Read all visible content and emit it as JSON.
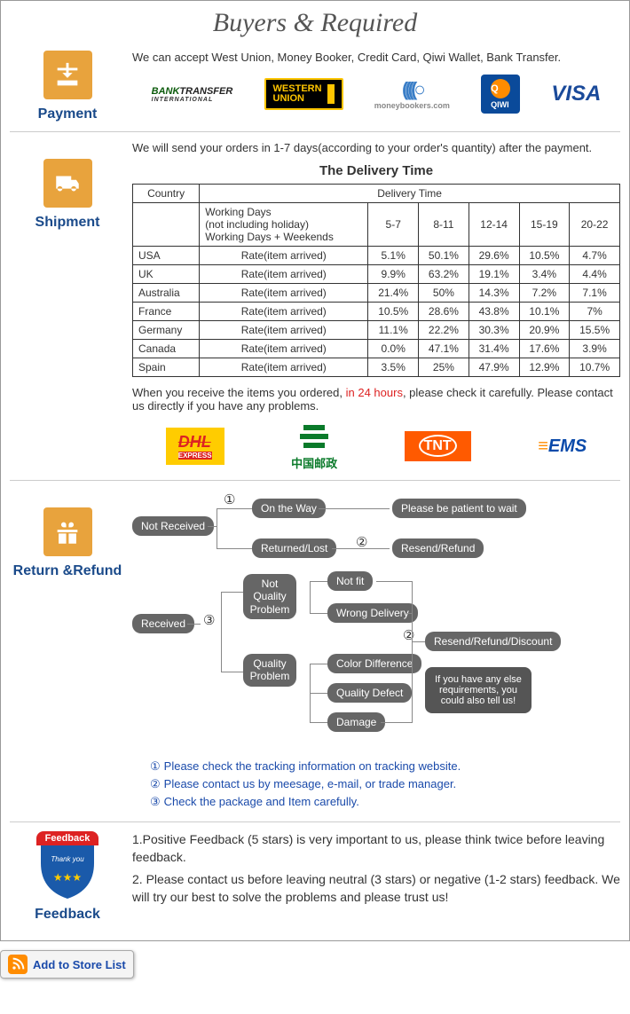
{
  "banner_title": "Buyers & Required",
  "colors": {
    "accent_orange": "#e8a33d",
    "link_blue": "#1a4a8a",
    "highlight_red": "#d22"
  },
  "payment": {
    "icon_label": "Payment",
    "intro": "We can accept West Union, Money Booker, Credit Card, Qiwi Wallet, Bank Transfer.",
    "logos": [
      {
        "name": "bank-transfer",
        "line1": "BANK",
        "line2": "TRANSFER",
        "sub": "INTERNATIONAL"
      },
      {
        "name": "western-union",
        "line1": "WESTERN",
        "line2": "UNION"
      },
      {
        "name": "moneybookers",
        "label": "moneybookers.com"
      },
      {
        "name": "qiwi",
        "letter": "Q",
        "label": "QIWI"
      },
      {
        "name": "visa",
        "label": "VISA"
      }
    ]
  },
  "shipment": {
    "icon_label": "Shipment",
    "intro": "We will send your orders in 1-7 days(according to your order's quantity) after the payment.",
    "table_title": "The Delivery Time",
    "header_country": "Country",
    "header_delivery": "Delivery Time",
    "sub_header_lines": [
      "Working Days",
      "(not including holiday)",
      "Working Days + Weekends"
    ],
    "ranges": [
      "5-7",
      "8-11",
      "12-14",
      "15-19",
      "20-22"
    ],
    "rate_label": "Rate(item arrived)",
    "rows": [
      {
        "country": "USA",
        "rates": [
          "5.1%",
          "50.1%",
          "29.6%",
          "10.5%",
          "4.7%"
        ]
      },
      {
        "country": "UK",
        "rates": [
          "9.9%",
          "63.2%",
          "19.1%",
          "3.4%",
          "4.4%"
        ]
      },
      {
        "country": "Australia",
        "rates": [
          "21.4%",
          "50%",
          "14.3%",
          "7.2%",
          "7.1%"
        ]
      },
      {
        "country": "France",
        "rates": [
          "10.5%",
          "28.6%",
          "43.8%",
          "10.1%",
          "7%"
        ]
      },
      {
        "country": "Germany",
        "rates": [
          "11.1%",
          "22.2%",
          "30.3%",
          "20.9%",
          "15.5%"
        ]
      },
      {
        "country": "Canada",
        "rates": [
          "0.0%",
          "47.1%",
          "31.4%",
          "17.6%",
          "3.9%"
        ]
      },
      {
        "country": "Spain",
        "rates": [
          "3.5%",
          "25%",
          "47.9%",
          "12.9%",
          "10.7%"
        ]
      }
    ],
    "note_pre": "When you receive the items you ordered, ",
    "note_red": "in 24 hours",
    "note_post": ", please check it carefully. Please contact us directly if you have any problems.",
    "carriers": [
      {
        "name": "dhl",
        "label": "DHL",
        "sub": "EXPRESS"
      },
      {
        "name": "china-post",
        "label": "中国邮政"
      },
      {
        "name": "tnt",
        "label": "TNT"
      },
      {
        "name": "ems",
        "label": "EMS"
      }
    ]
  },
  "return_refund": {
    "icon_label": "Return &Refund",
    "flow": {
      "not_received": "Not Received",
      "on_the_way": "On the Way",
      "returned_lost": "Returned/Lost",
      "patient": "Please be patient to wait",
      "resend_refund": "Resend/Refund",
      "received": "Received",
      "not_quality": "Not Quality Problem",
      "not_fit": "Not fit",
      "wrong_delivery": "Wrong Delivery",
      "quality_problem": "Quality Problem",
      "color_diff": "Color Difference",
      "quality_defect": "Quality Defect",
      "damage": "Damage",
      "resend_refund_discount": "Resend/Refund/Discount",
      "callout": "If you have any else requirements, you could also tell us!",
      "num1": "①",
      "num2": "②",
      "num3": "③"
    },
    "notes": [
      {
        "num": "①",
        "text": "Please check the tracking information on tracking website."
      },
      {
        "num": "②",
        "text": "Please contact us by meesage, e-mail, or trade manager."
      },
      {
        "num": "③",
        "text": "Check the package and Item carefully."
      }
    ]
  },
  "feedback": {
    "icon_label": "Feedback",
    "badge_top": "Feedback",
    "badge_sub": "Thank you",
    "lines": [
      "1.Positive Feedback (5 stars) is very important to us, please think twice before leaving feedback.",
      "2. Please contact us before leaving neutral (3 stars) or negative (1-2 stars) feedback. We will try our best to solve the problems and please trust us!"
    ]
  },
  "add_store": "Add to Store List"
}
